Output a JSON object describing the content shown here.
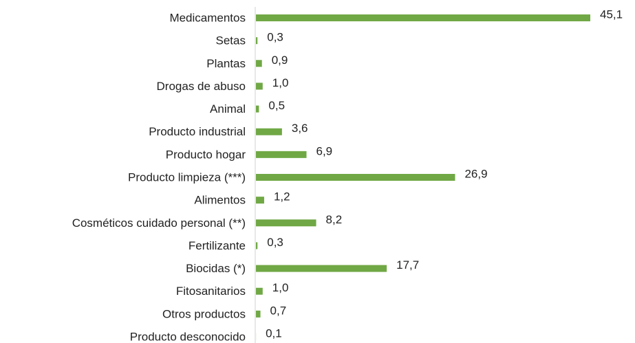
{
  "chart_data": {
    "type": "bar",
    "orientation": "horizontal",
    "categories": [
      "Medicamentos",
      "Setas",
      "Plantas",
      "Drogas de abuso",
      "Animal",
      "Producto industrial",
      "Producto hogar",
      "Producto limpieza (***)",
      "Alimentos",
      "Cosméticos cuidado personal (**)",
      "Fertilizante",
      "Biocidas (*)",
      "Fitosanitarios",
      "Otros productos",
      "Producto desconocido"
    ],
    "values": [
      45.1,
      0.3,
      0.9,
      1.0,
      0.5,
      3.6,
      6.9,
      26.9,
      1.2,
      8.2,
      0.3,
      17.7,
      1.0,
      0.7,
      0.1
    ],
    "value_labels": [
      "45,1",
      "0,3",
      "0,9",
      "1,0",
      "0,5",
      "3,6",
      "6,9",
      "26,9",
      "1,2",
      "8,2",
      "0,3",
      "17,7",
      "1,0",
      "0,7",
      "0,1"
    ],
    "color": "#70a845"
  }
}
